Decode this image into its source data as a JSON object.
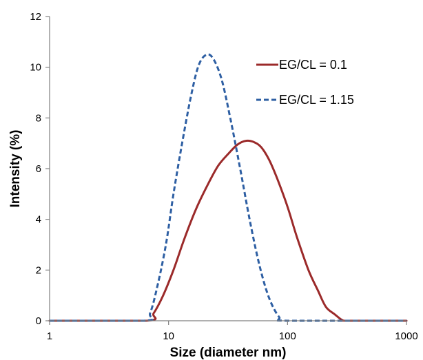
{
  "chart_data": {
    "type": "line",
    "title": "",
    "xlabel": "Size (diameter nm)",
    "ylabel": "Intensity (%)",
    "x_scale": "log",
    "xlim": [
      1,
      1000
    ],
    "ylim": [
      0,
      12
    ],
    "x_ticks": [
      "1",
      "10",
      "100",
      "1000"
    ],
    "y_ticks": [
      "0",
      "2",
      "4",
      "6",
      "8",
      "10",
      "12"
    ],
    "grid": false,
    "legend_position": "top-right",
    "series": [
      {
        "name": "EG/CL = 0.1",
        "color": "#9b2a2a",
        "style": "solid",
        "points": [
          [
            1,
            0
          ],
          [
            6.5,
            0
          ],
          [
            7.5,
            0.3
          ],
          [
            9,
            1.0
          ],
          [
            11,
            2.0
          ],
          [
            13.5,
            3.2
          ],
          [
            17,
            4.4
          ],
          [
            21,
            5.3
          ],
          [
            26,
            6.1
          ],
          [
            32,
            6.6
          ],
          [
            38,
            6.95
          ],
          [
            45,
            7.1
          ],
          [
            52,
            7.05
          ],
          [
            60,
            6.85
          ],
          [
            70,
            6.35
          ],
          [
            82,
            5.6
          ],
          [
            100,
            4.5
          ],
          [
            120,
            3.3
          ],
          [
            150,
            2.0
          ],
          [
            180,
            1.2
          ],
          [
            210,
            0.55
          ],
          [
            250,
            0.25
          ],
          [
            290,
            0.02
          ],
          [
            330,
            0
          ],
          [
            1000,
            0
          ]
        ]
      },
      {
        "name": "EG/CL = 1.15",
        "color": "#2e5fa3",
        "style": "dashed",
        "points": [
          [
            1,
            0
          ],
          [
            6.2,
            0
          ],
          [
            7,
            0.3
          ],
          [
            8,
            1.3
          ],
          [
            9.5,
            3.0
          ],
          [
            11,
            5.0
          ],
          [
            13,
            7.0
          ],
          [
            15.5,
            8.9
          ],
          [
            18,
            10.1
          ],
          [
            21,
            10.5
          ],
          [
            24,
            10.3
          ],
          [
            28,
            9.5
          ],
          [
            33,
            8.0
          ],
          [
            40,
            6.0
          ],
          [
            48,
            4.0
          ],
          [
            58,
            2.2
          ],
          [
            70,
            0.9
          ],
          [
            85,
            0.15
          ],
          [
            100,
            0
          ],
          [
            1000,
            0
          ]
        ]
      }
    ]
  }
}
